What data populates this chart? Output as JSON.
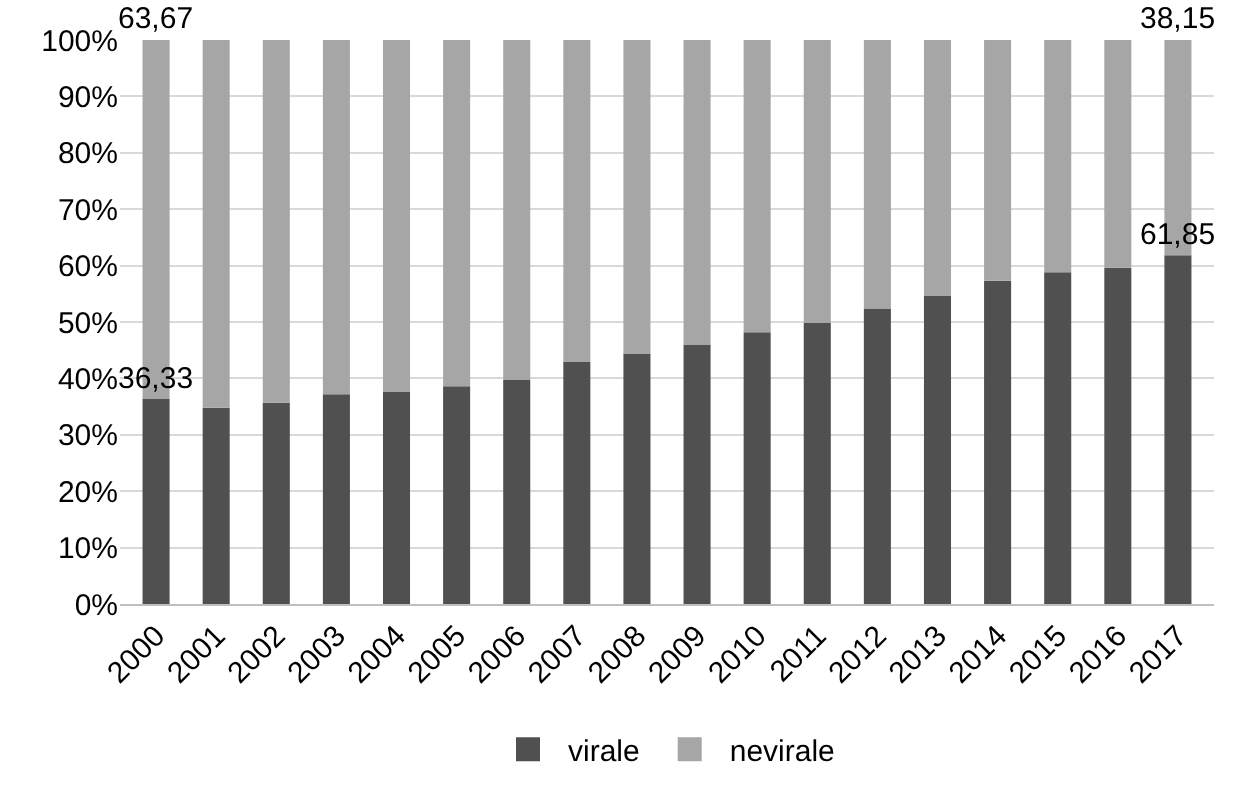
{
  "chart_data": {
    "type": "bar",
    "stacked": true,
    "categories": [
      "2000",
      "2001",
      "2002",
      "2003",
      "2004",
      "2005",
      "2006",
      "2007",
      "2008",
      "2009",
      "2010",
      "2011",
      "2012",
      "2013",
      "2014",
      "2015",
      "2016",
      "2017"
    ],
    "series": [
      {
        "name": "virale",
        "color": "#505050",
        "values": [
          36.33,
          34.8,
          35.7,
          37.2,
          37.6,
          38.6,
          39.7,
          42.9,
          44.4,
          46.0,
          48.2,
          49.8,
          52.3,
          54.6,
          57.3,
          58.8,
          59.6,
          61.85
        ],
        "value_labels": [
          "36,33",
          null,
          null,
          null,
          null,
          null,
          null,
          null,
          null,
          null,
          null,
          null,
          null,
          null,
          null,
          null,
          null,
          "61,85"
        ]
      },
      {
        "name": "nevirale",
        "color": "#a6a6a6",
        "values": [
          63.67,
          65.2,
          64.3,
          62.8,
          62.4,
          61.4,
          60.3,
          57.1,
          55.6,
          54.0,
          51.8,
          50.2,
          47.7,
          45.4,
          42.7,
          41.2,
          40.4,
          38.15
        ],
        "value_labels": [
          "63,67",
          null,
          null,
          null,
          null,
          null,
          null,
          null,
          null,
          null,
          null,
          null,
          null,
          null,
          null,
          null,
          null,
          "38,15"
        ]
      }
    ],
    "ylim": [
      0,
      100
    ],
    "yticks": [
      {
        "value": 0,
        "label": "0%"
      },
      {
        "value": 10,
        "label": "10%"
      },
      {
        "value": 20,
        "label": "20%"
      },
      {
        "value": 30,
        "label": "30%"
      },
      {
        "value": 40,
        "label": "40%"
      },
      {
        "value": 50,
        "label": "50%"
      },
      {
        "value": 60,
        "label": "60%"
      },
      {
        "value": 70,
        "label": "70%"
      },
      {
        "value": 80,
        "label": "80%"
      },
      {
        "value": 90,
        "label": "90%"
      },
      {
        "value": 100,
        "label": "100%"
      }
    ],
    "grid": "y",
    "legend": "bottom"
  }
}
